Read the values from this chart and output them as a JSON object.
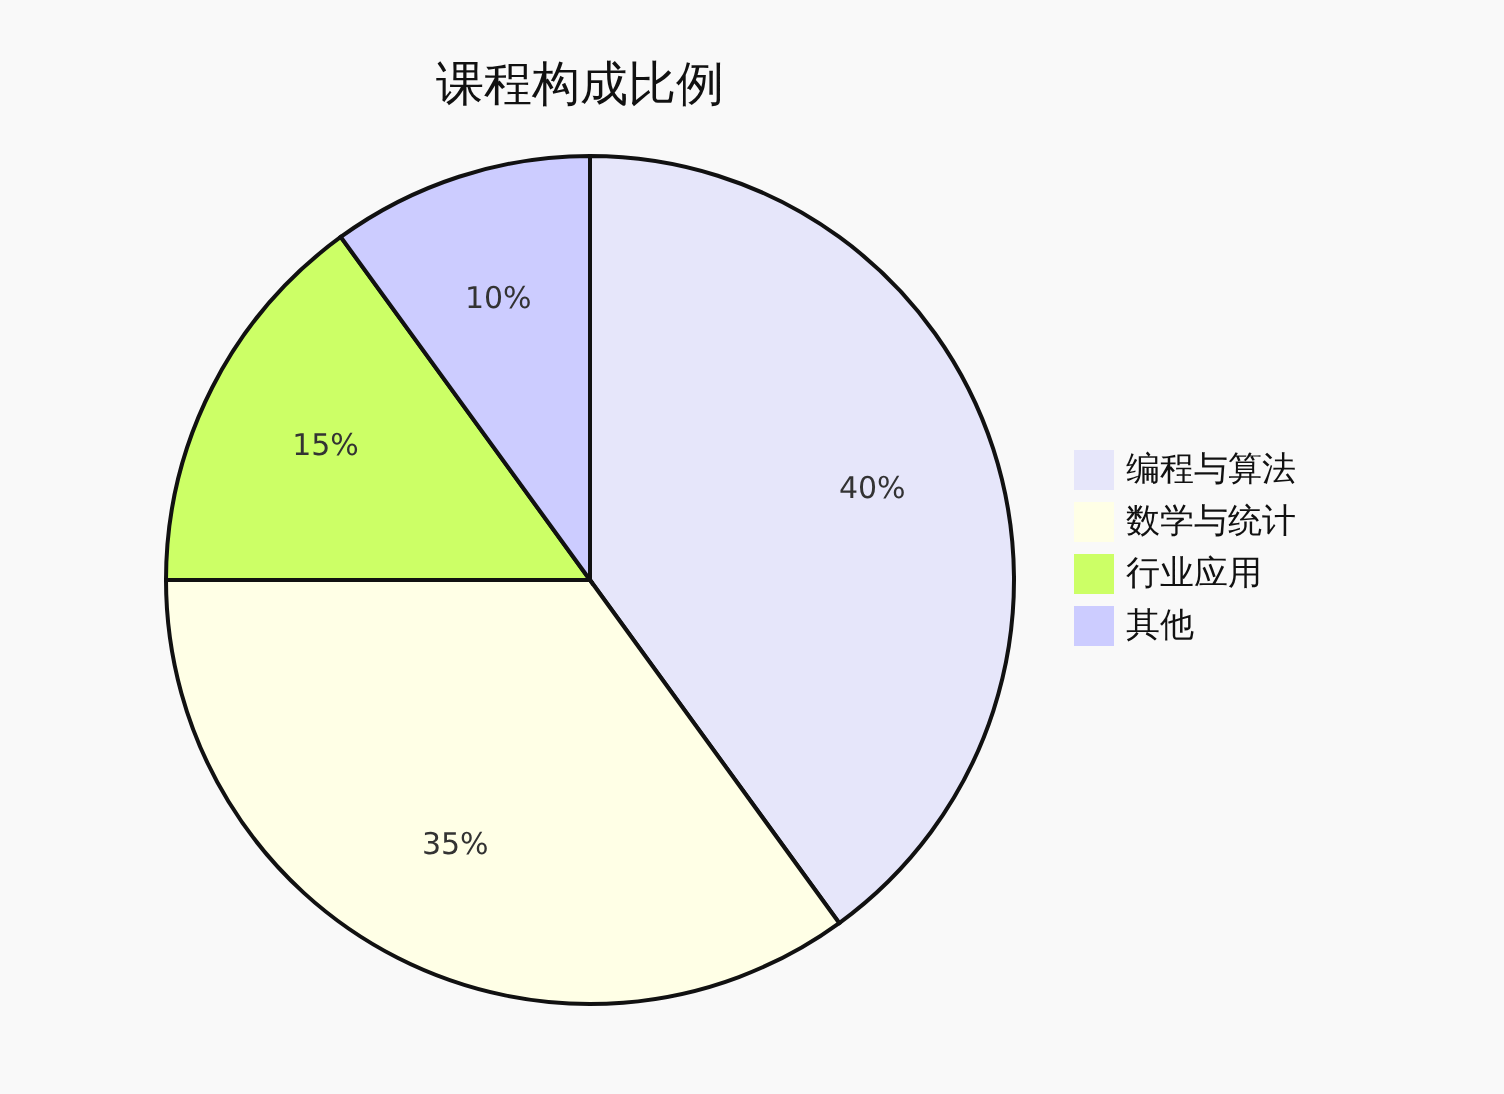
{
  "chart_data": {
    "type": "pie",
    "title": "课程构成比例",
    "categories": [
      "编程与算法",
      "数学与统计",
      "行业应用",
      "其他"
    ],
    "values": [
      40,
      35,
      15,
      10
    ],
    "value_labels": [
      "40%",
      "35%",
      "15%",
      "10%"
    ],
    "colors": [
      "#e6e6fa",
      "#ffffe6",
      "#ccff66",
      "#ccccff"
    ],
    "legend": "right"
  }
}
